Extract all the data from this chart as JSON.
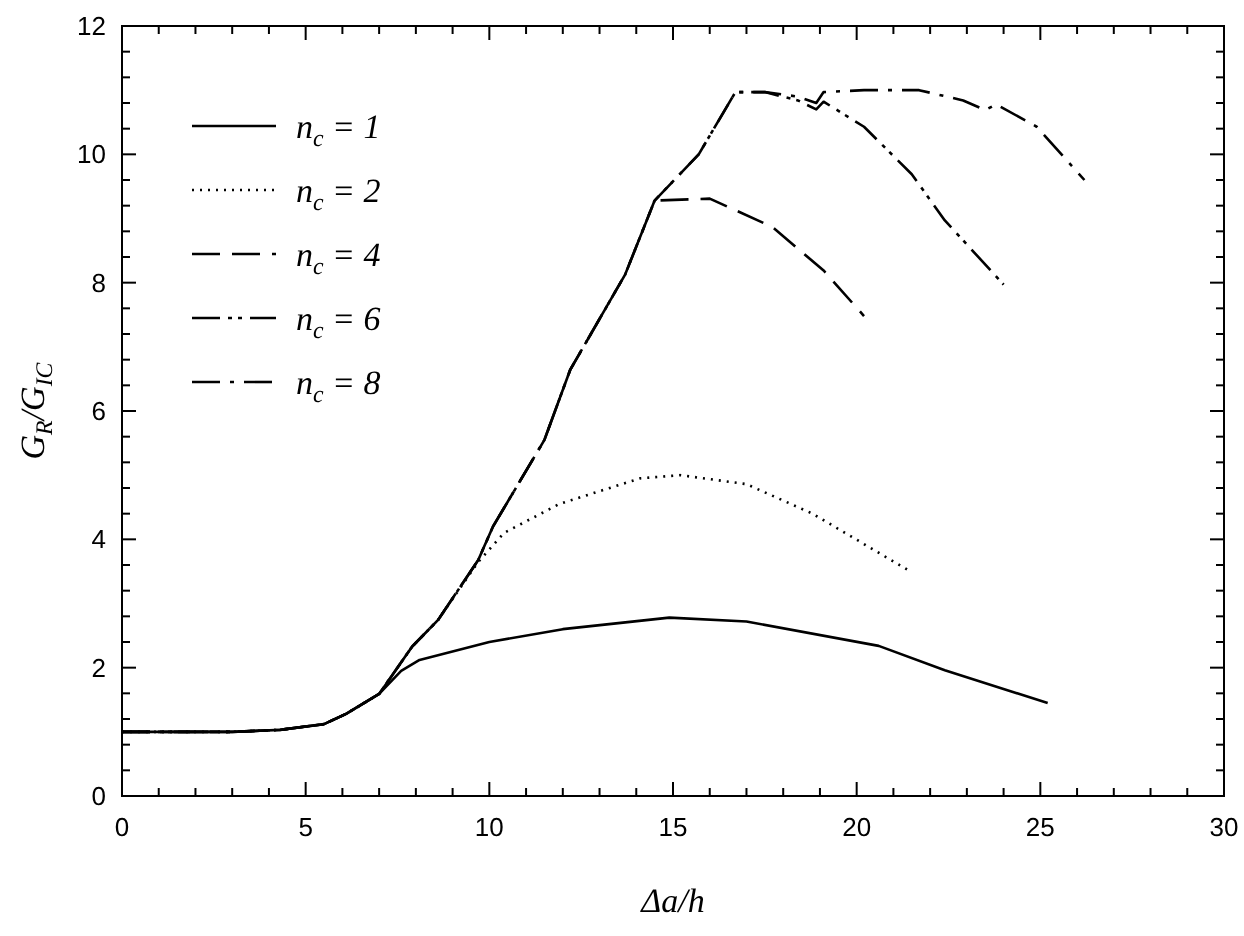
{
  "chart_data": {
    "type": "line",
    "xlabel": "Δa/h",
    "ylabel": "G$_{R}$/G$_{IC}$",
    "xlim": [
      0,
      30
    ],
    "ylim": [
      0,
      12
    ],
    "xticks": [
      0,
      {
        "value": 1,
        "label": null
      },
      {
        "value": 2,
        "label": null
      },
      {
        "value": 3,
        "label": null
      },
      {
        "value": 4,
        "label": null
      },
      5,
      {
        "value": 6,
        "label": null
      },
      {
        "value": 7,
        "label": null
      },
      {
        "value": 8,
        "label": null
      },
      {
        "value": 9,
        "label": null
      },
      10,
      {
        "value": 11,
        "label": null
      },
      {
        "value": 12,
        "label": null
      },
      {
        "value": 13,
        "label": null
      },
      {
        "value": 14,
        "label": null
      },
      15,
      {
        "value": 16,
        "label": null
      },
      {
        "value": 17,
        "label": null
      },
      {
        "value": 18,
        "label": null
      },
      {
        "value": 19,
        "label": null
      },
      20,
      {
        "value": 21,
        "label": null
      },
      {
        "value": 22,
        "label": null
      },
      {
        "value": 23,
        "label": null
      },
      {
        "value": 24,
        "label": null
      },
      25,
      {
        "value": 26,
        "label": null
      },
      {
        "value": 27,
        "label": null
      },
      {
        "value": 28,
        "label": null
      },
      {
        "value": 29,
        "label": null
      },
      30
    ],
    "yticks": [
      0,
      {
        "value": 0.4,
        "label": null
      },
      {
        "value": 0.8,
        "label": null
      },
      {
        "value": 1.2,
        "label": null
      },
      {
        "value": 1.6,
        "label": null
      },
      2,
      {
        "value": 2.4,
        "label": null
      },
      {
        "value": 2.8,
        "label": null
      },
      {
        "value": 3.2,
        "label": null
      },
      {
        "value": 3.6,
        "label": null
      },
      4,
      {
        "value": 4.4,
        "label": null
      },
      {
        "value": 4.8,
        "label": null
      },
      {
        "value": 5.2,
        "label": null
      },
      {
        "value": 5.6,
        "label": null
      },
      6,
      {
        "value": 6.4,
        "label": null
      },
      {
        "value": 6.8,
        "label": null
      },
      {
        "value": 7.2,
        "label": null
      },
      {
        "value": 7.6,
        "label": null
      },
      8,
      {
        "value": 8.4,
        "label": null
      },
      {
        "value": 8.8,
        "label": null
      },
      {
        "value": 9.2,
        "label": null
      },
      {
        "value": 9.6,
        "label": null
      },
      10,
      {
        "value": 10.4,
        "label": null
      },
      {
        "value": 10.8,
        "label": null
      },
      {
        "value": 11.2,
        "label": null
      },
      {
        "value": 11.6,
        "label": null
      },
      12
    ],
    "grid": false,
    "legend": "top left",
    "marker": "none",
    "series": [
      {
        "name": "n$_{c}$ = 1",
        "color": "#000000",
        "line_style": "solid",
        "x": [
          0,
          2,
          3,
          4.3,
          5.5,
          6.1,
          7,
          7.6,
          8.1,
          10,
          12,
          14.9,
          17,
          20.6,
          22.4,
          25.2
        ],
        "values": [
          1,
          1,
          1,
          1.03,
          1.12,
          1.28,
          1.59,
          1.95,
          2.12,
          2.4,
          2.6,
          2.78,
          2.72,
          2.34,
          1.96,
          1.45
        ]
      },
      {
        "name": "n$_{c}$ = 2",
        "color": "#000000",
        "line_style": "dotted",
        "x": [
          0,
          2,
          3,
          4.3,
          5.5,
          6.1,
          7,
          7.9,
          8.6,
          9.7,
          10.4,
          11.9,
          14.1,
          15.2,
          17,
          18.8,
          21.4
        ],
        "values": [
          1,
          1,
          1,
          1.03,
          1.12,
          1.28,
          1.59,
          2.33,
          2.74,
          3.65,
          4.1,
          4.55,
          4.95,
          5.0,
          4.86,
          4.4,
          3.52
        ]
      },
      {
        "name": "n$_{c}$ = 4",
        "color": "#000000",
        "line_style": "dashed",
        "x": [
          0,
          2,
          3,
          4.3,
          5.5,
          6.1,
          7,
          7.9,
          8.6,
          9.7,
          10.1,
          11.5,
          12.2,
          13.7,
          14.5,
          16,
          17.7,
          19.1,
          20.2
        ],
        "values": [
          1,
          1,
          1,
          1.03,
          1.12,
          1.28,
          1.59,
          2.33,
          2.74,
          3.68,
          4.2,
          5.55,
          6.64,
          8.13,
          9.28,
          9.31,
          8.87,
          8.19,
          7.48
        ]
      },
      {
        "name": "n$_{c}$ = 6",
        "color": "#000000",
        "line_style": "dashdotdot",
        "x": [
          0,
          2,
          3,
          4.3,
          5.5,
          6.1,
          7,
          7.9,
          8.6,
          9.7,
          10.1,
          11.5,
          12.2,
          13.7,
          14.5,
          15.7,
          16.7,
          17.5,
          18.4,
          18.9,
          19.1,
          20.2,
          21.5,
          22.4,
          24.0
        ],
        "values": [
          1,
          1,
          1,
          1.03,
          1.12,
          1.28,
          1.59,
          2.33,
          2.74,
          3.68,
          4.2,
          5.55,
          6.64,
          8.13,
          9.28,
          10.0,
          10.97,
          10.97,
          10.84,
          10.7,
          10.82,
          10.43,
          9.69,
          8.97,
          7.97
        ]
      },
      {
        "name": "n$_{c}$ = 8",
        "color": "#000000",
        "line_style": "dashdot",
        "x": [
          0,
          2,
          3,
          4.3,
          5.5,
          6.1,
          7,
          7.9,
          8.6,
          9.7,
          10.1,
          11.5,
          12.2,
          13.7,
          14.5,
          15.7,
          16.7,
          17.5,
          18.4,
          18.9,
          19.1,
          20.2,
          21.7,
          22.9,
          23.5,
          23.8,
          24.9,
          26.2
        ],
        "values": [
          1,
          1,
          1,
          1.03,
          1.12,
          1.28,
          1.59,
          2.33,
          2.74,
          3.68,
          4.2,
          5.55,
          6.64,
          8.13,
          9.28,
          10.0,
          10.97,
          10.97,
          10.9,
          10.8,
          10.97,
          11.0,
          11.0,
          10.84,
          10.69,
          10.78,
          10.43,
          9.6
        ]
      }
    ]
  }
}
